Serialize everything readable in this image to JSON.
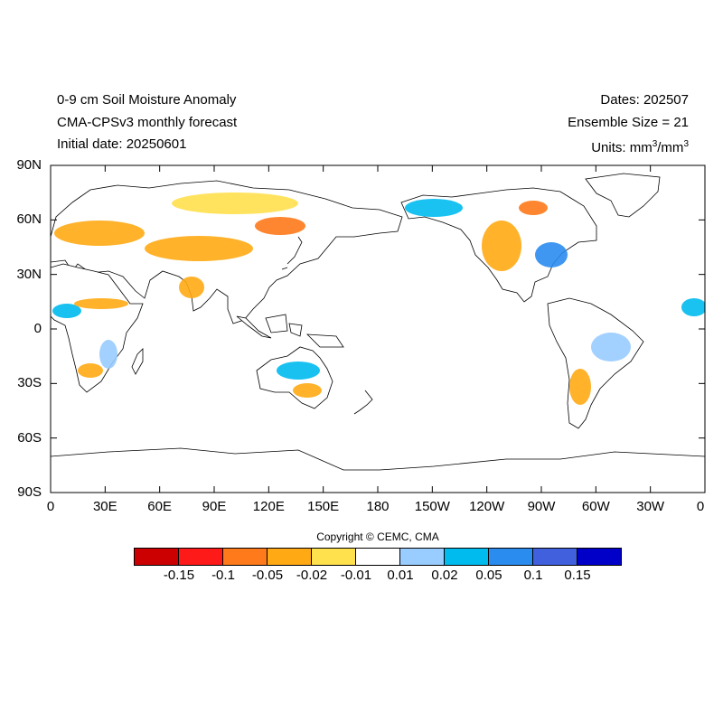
{
  "header": {
    "left_line1": "0-9 cm Soil Moisture Anomaly",
    "left_line2": "CMA-CPSv3 monthly forecast",
    "left_line3": "Initial date: 20250601",
    "right_line1": "Dates: 202507",
    "right_line2": "Ensemble Size = 21",
    "units_prefix": "Units: mm",
    "units_mid": "/mm",
    "units_sup": "3"
  },
  "axes": {
    "y_labels": [
      "90N",
      "60N",
      "30N",
      "0",
      "30S",
      "60S",
      "90S"
    ],
    "x_labels": [
      "0",
      "30E",
      "60E",
      "90E",
      "120E",
      "150E",
      "180",
      "150W",
      "120W",
      "90W",
      "60W",
      "30W",
      "0"
    ],
    "lon_range": [
      0,
      360
    ],
    "lat_range": [
      -90,
      90
    ]
  },
  "copyright": "Copyright © CEMC, CMA",
  "colorbar": {
    "colors": [
      "#cc0000",
      "#ff1a1a",
      "#ff7a1a",
      "#ffaa14",
      "#ffe04d",
      "#ffffff",
      "#99ccff",
      "#00bbee",
      "#2b8cf0",
      "#4060dd",
      "#0000c8"
    ],
    "labels": [
      "-0.15",
      "-0.1",
      "-0.05",
      "-0.02",
      "-0.01",
      "0.01",
      "0.02",
      "0.05",
      "0.1",
      "0.15"
    ]
  },
  "colors": {
    "dry": "#ffaa14",
    "dry_light": "#ffe04d",
    "dry_strong": "#ff7a1a",
    "wet_light": "#99ccff",
    "wet": "#00bbee",
    "wet_strong": "#2b8cf0"
  }
}
